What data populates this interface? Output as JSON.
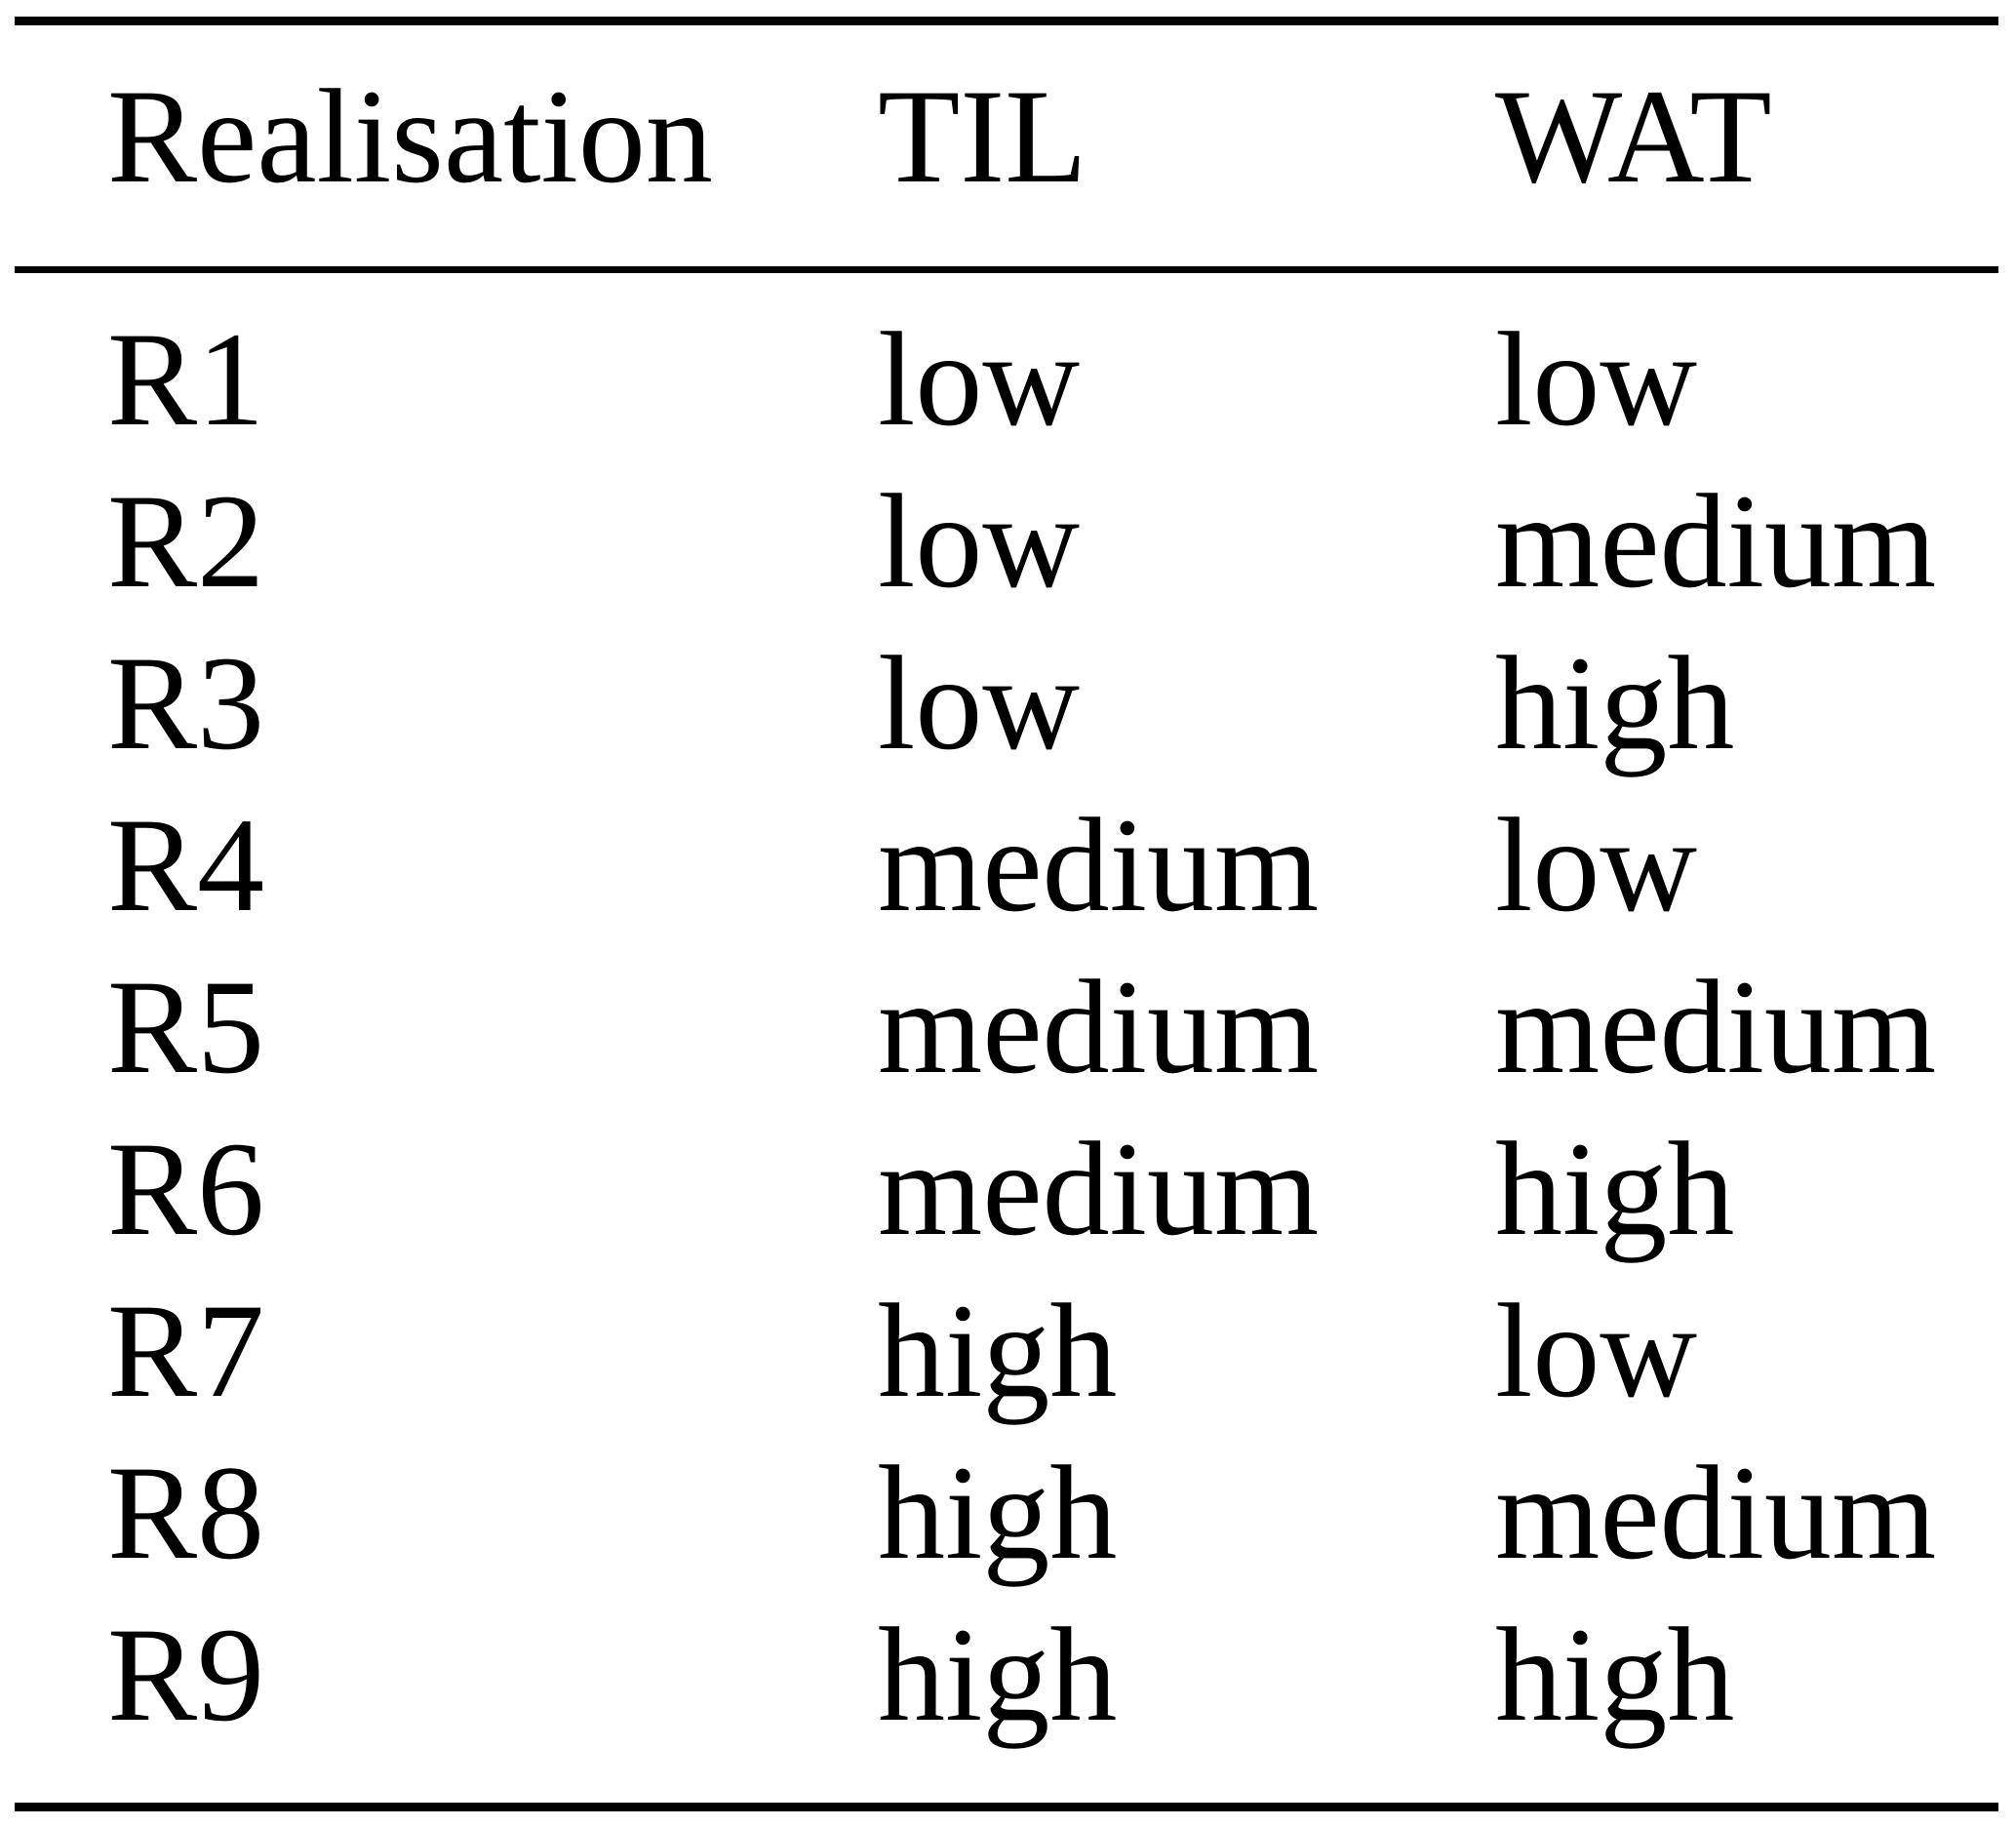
{
  "table": {
    "columns": [
      "Realisation",
      "TIL",
      "WAT"
    ],
    "rows": [
      {
        "realisation": "R1",
        "til": "low",
        "wat": "low"
      },
      {
        "realisation": "R2",
        "til": "low",
        "wat": "medium"
      },
      {
        "realisation": "R3",
        "til": "low",
        "wat": "high"
      },
      {
        "realisation": "R4",
        "til": "medium",
        "wat": "low"
      },
      {
        "realisation": "R5",
        "til": "medium",
        "wat": "medium"
      },
      {
        "realisation": "R6",
        "til": "medium",
        "wat": "high"
      },
      {
        "realisation": "R7",
        "til": "high",
        "wat": "low"
      },
      {
        "realisation": "R8",
        "til": "high",
        "wat": "medium"
      },
      {
        "realisation": "R9",
        "til": "high",
        "wat": "high"
      }
    ]
  },
  "colors": {
    "background": "#ffffff",
    "text": "#000000",
    "rule": "#000000"
  }
}
